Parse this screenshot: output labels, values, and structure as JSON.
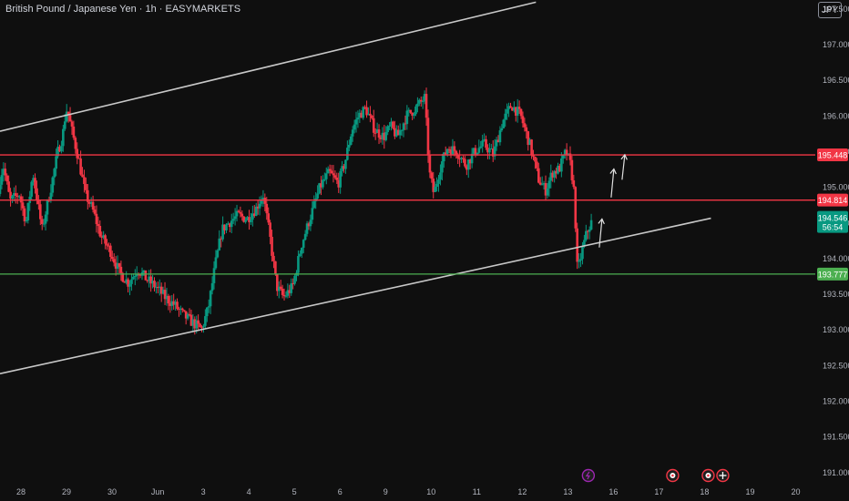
{
  "header": {
    "title": "British Pound / Japanese Yen · 1h · EASYMARKETS",
    "currency": "JPY"
  },
  "chart_data": {
    "type": "candlestick",
    "y_ticks": [
      191.0,
      191.5,
      192.0,
      192.5,
      193.0,
      193.5,
      194.0,
      194.5,
      195.0,
      195.5,
      196.0,
      196.5,
      197.0,
      197.5
    ],
    "y_tick_format_decimals": 3,
    "ylim": [
      190.85,
      197.62
    ],
    "x_labels": [
      {
        "label": "28",
        "day": 0
      },
      {
        "label": "29",
        "day": 1
      },
      {
        "label": "30",
        "day": 2
      },
      {
        "label": "Jun",
        "day": 3
      },
      {
        "label": "3",
        "day": 4
      },
      {
        "label": "4",
        "day": 5
      },
      {
        "label": "5",
        "day": 6
      },
      {
        "label": "6",
        "day": 7
      },
      {
        "label": "9",
        "day": 8
      },
      {
        "label": "10",
        "day": 9
      },
      {
        "label": "11",
        "day": 10
      },
      {
        "label": "12",
        "day": 11
      },
      {
        "label": "13",
        "day": 12
      },
      {
        "label": "16",
        "day": 13
      },
      {
        "label": "17",
        "day": 14
      },
      {
        "label": "18",
        "day": 15
      },
      {
        "label": "19",
        "day": 16
      },
      {
        "label": "20",
        "day": 17
      }
    ],
    "xlim_days": [
      -0.46,
      17.43
    ],
    "price_path": [
      [
        -0.5,
        194.9
      ],
      [
        -0.35,
        195.3
      ],
      [
        -0.2,
        194.8
      ],
      [
        0.0,
        194.9
      ],
      [
        0.15,
        194.5
      ],
      [
        0.3,
        195.2
      ],
      [
        0.5,
        194.4
      ],
      [
        0.7,
        195.0
      ],
      [
        0.85,
        195.5
      ],
      [
        0.95,
        195.7
      ],
      [
        1.0,
        195.95
      ],
      [
        1.05,
        196.1
      ],
      [
        1.15,
        195.8
      ],
      [
        1.3,
        195.4
      ],
      [
        1.45,
        194.9
      ],
      [
        1.6,
        194.7
      ],
      [
        1.8,
        194.3
      ],
      [
        2.0,
        194.1
      ],
      [
        2.2,
        193.8
      ],
      [
        2.4,
        193.65
      ],
      [
        2.6,
        193.85
      ],
      [
        2.8,
        193.7
      ],
      [
        3.0,
        193.6
      ],
      [
        3.2,
        193.45
      ],
      [
        3.4,
        193.35
      ],
      [
        3.6,
        193.2
      ],
      [
        3.8,
        193.1
      ],
      [
        4.0,
        193.0
      ],
      [
        4.15,
        193.3
      ],
      [
        4.3,
        193.9
      ],
      [
        4.45,
        194.4
      ],
      [
        4.6,
        194.5
      ],
      [
        4.8,
        194.6
      ],
      [
        5.0,
        194.55
      ],
      [
        5.2,
        194.7
      ],
      [
        5.35,
        194.9
      ],
      [
        5.5,
        194.3
      ],
      [
        5.65,
        193.6
      ],
      [
        5.8,
        193.45
      ],
      [
        6.0,
        193.6
      ],
      [
        6.2,
        194.2
      ],
      [
        6.4,
        194.6
      ],
      [
        6.6,
        195.0
      ],
      [
        6.8,
        195.2
      ],
      [
        7.0,
        195.05
      ],
      [
        7.15,
        195.35
      ],
      [
        7.3,
        195.8
      ],
      [
        7.45,
        196.0
      ],
      [
        7.6,
        196.1
      ],
      [
        7.8,
        195.8
      ],
      [
        8.0,
        195.7
      ],
      [
        8.15,
        195.85
      ],
      [
        8.3,
        195.7
      ],
      [
        8.5,
        196.0
      ],
      [
        8.7,
        196.1
      ],
      [
        8.9,
        196.25
      ],
      [
        9.0,
        195.2
      ],
      [
        9.1,
        194.9
      ],
      [
        9.25,
        195.3
      ],
      [
        9.4,
        195.55
      ],
      [
        9.6,
        195.5
      ],
      [
        9.8,
        195.3
      ],
      [
        10.0,
        195.5
      ],
      [
        10.2,
        195.6
      ],
      [
        10.4,
        195.45
      ],
      [
        10.6,
        195.9
      ],
      [
        10.8,
        196.15
      ],
      [
        11.0,
        196.0
      ],
      [
        11.2,
        195.6
      ],
      [
        11.4,
        195.1
      ],
      [
        11.55,
        194.95
      ],
      [
        11.7,
        195.2
      ],
      [
        11.85,
        195.25
      ],
      [
        12.0,
        195.5
      ],
      [
        12.1,
        195.3
      ],
      [
        12.18,
        194.9
      ],
      [
        12.25,
        193.8
      ],
      [
        12.35,
        194.1
      ],
      [
        12.45,
        194.35
      ],
      [
        12.55,
        194.5
      ]
    ],
    "channel_upper": {
      "from": [
        -0.46,
        195.78
      ],
      "to": [
        11.3,
        197.59
      ]
    },
    "channel_lower": {
      "from": [
        -0.46,
        192.38
      ],
      "to": [
        15.14,
        194.56
      ]
    },
    "levels": [
      {
        "value": 195.448,
        "label": "195.448",
        "color": "#f23645",
        "badge_color": "#f23645"
      },
      {
        "value": 194.814,
        "label": "194.814",
        "color": "#f23645",
        "badge_color": "#f23645"
      },
      {
        "value": 193.777,
        "label": "193.777",
        "color": "#4caf50",
        "badge_color": "#4caf50"
      }
    ],
    "current_price": {
      "label": "194.546",
      "countdown": "56:54",
      "value": 194.546,
      "badge_color": "#089981"
    },
    "arrows": [
      {
        "day": 12.72,
        "from": 194.15,
        "to": 194.55
      },
      {
        "day": 12.98,
        "from": 194.85,
        "to": 195.25
      },
      {
        "day": 13.22,
        "from": 195.1,
        "to": 195.45
      }
    ],
    "event_icons": [
      {
        "day": 12.45,
        "icon": "lightning-icon",
        "color": "#9c27b0"
      },
      {
        "day": 14.3,
        "icon": "calendar-icon",
        "color": "#f23645"
      },
      {
        "day": 15.08,
        "icon": "calendar-icon",
        "color": "#f23645"
      },
      {
        "day": 15.4,
        "icon": "flag-icon",
        "color": "#f23645"
      }
    ],
    "colors": {
      "up": "#089981",
      "down": "#f23645",
      "axis_text": "#b2b5be",
      "channel": "#c8c8c8",
      "background": "#0f0f0f"
    }
  }
}
